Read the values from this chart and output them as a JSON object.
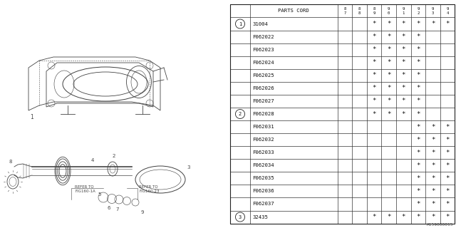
{
  "table_header_years": [
    "8\n7",
    "8\n8",
    "8\n9",
    "9\n0",
    "9\n1",
    "9\n2",
    "9\n3",
    "9\n4"
  ],
  "rows": [
    {
      "num": "1",
      "part": "31004",
      "marks": [
        0,
        0,
        1,
        1,
        1,
        1,
        1,
        1
      ]
    },
    {
      "num": "",
      "part": "F062022",
      "marks": [
        0,
        0,
        1,
        1,
        1,
        1,
        0,
        0
      ]
    },
    {
      "num": "",
      "part": "F062023",
      "marks": [
        0,
        0,
        1,
        1,
        1,
        1,
        0,
        0
      ]
    },
    {
      "num": "",
      "part": "F062024",
      "marks": [
        0,
        0,
        1,
        1,
        1,
        1,
        0,
        0
      ]
    },
    {
      "num": "",
      "part": "F062025",
      "marks": [
        0,
        0,
        1,
        1,
        1,
        1,
        0,
        0
      ]
    },
    {
      "num": "",
      "part": "F062026",
      "marks": [
        0,
        0,
        1,
        1,
        1,
        1,
        0,
        0
      ]
    },
    {
      "num": "",
      "part": "F062027",
      "marks": [
        0,
        0,
        1,
        1,
        1,
        1,
        0,
        0
      ]
    },
    {
      "num": "2",
      "part": "F062028",
      "marks": [
        0,
        0,
        1,
        1,
        1,
        1,
        0,
        0
      ]
    },
    {
      "num": "",
      "part": "F062031",
      "marks": [
        0,
        0,
        0,
        0,
        0,
        1,
        1,
        1
      ]
    },
    {
      "num": "",
      "part": "F062032",
      "marks": [
        0,
        0,
        0,
        0,
        0,
        1,
        1,
        1
      ]
    },
    {
      "num": "",
      "part": "F062033",
      "marks": [
        0,
        0,
        0,
        0,
        0,
        1,
        1,
        1
      ]
    },
    {
      "num": "",
      "part": "F062034",
      "marks": [
        0,
        0,
        0,
        0,
        0,
        1,
        1,
        1
      ]
    },
    {
      "num": "",
      "part": "F062035",
      "marks": [
        0,
        0,
        0,
        0,
        0,
        1,
        1,
        1
      ]
    },
    {
      "num": "",
      "part": "F062036",
      "marks": [
        0,
        0,
        0,
        0,
        0,
        1,
        1,
        1
      ]
    },
    {
      "num": "",
      "part": "F062037",
      "marks": [
        0,
        0,
        0,
        0,
        0,
        1,
        1,
        1
      ]
    },
    {
      "num": "3",
      "part": "32435",
      "marks": [
        0,
        0,
        1,
        1,
        1,
        1,
        1,
        1
      ]
    }
  ],
  "bg_color": "#ffffff",
  "line_color": "#111111",
  "text_color": "#111111",
  "watermark": "A159000015"
}
